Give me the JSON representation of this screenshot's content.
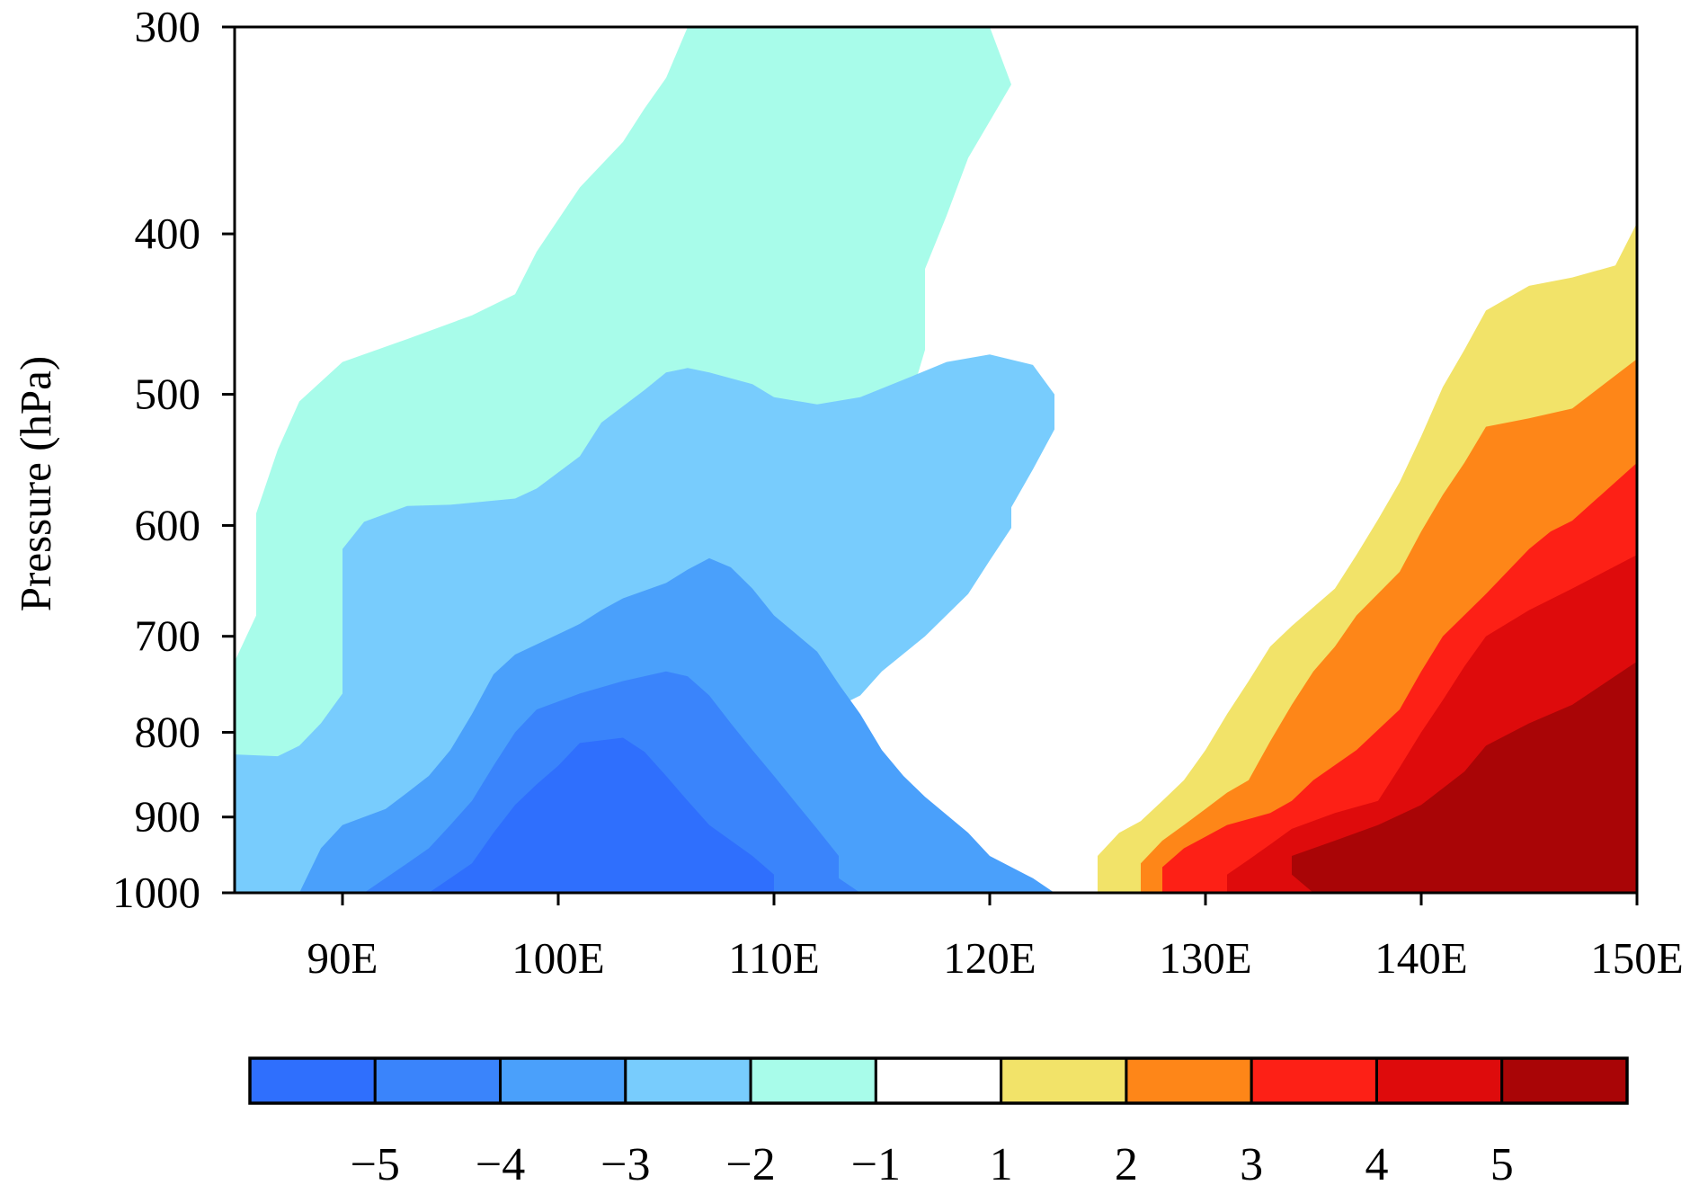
{
  "chart_data": {
    "type": "contour",
    "ylabel": "Pressure (hPa)",
    "xlabel": "",
    "xlim": [
      85,
      150
    ],
    "ylim": [
      1000,
      300
    ],
    "y_scale": "log-pressure",
    "x_ticks": [
      {
        "value": 90,
        "label": "90E"
      },
      {
        "value": 100,
        "label": "100E"
      },
      {
        "value": 110,
        "label": "110E"
      },
      {
        "value": 120,
        "label": "120E"
      },
      {
        "value": 130,
        "label": "130E"
      },
      {
        "value": 140,
        "label": "140E"
      },
      {
        "value": 150,
        "label": "150E"
      }
    ],
    "y_ticks": [
      {
        "value": 300,
        "label": "300"
      },
      {
        "value": 400,
        "label": "400"
      },
      {
        "value": 500,
        "label": "500"
      },
      {
        "value": 600,
        "label": "600"
      },
      {
        "value": 700,
        "label": "700"
      },
      {
        "value": 800,
        "label": "800"
      },
      {
        "value": 900,
        "label": "900"
      },
      {
        "value": 1000,
        "label": "1000"
      }
    ],
    "colorbar": {
      "orientation": "horizontal",
      "position": "bottom",
      "colors": [
        "#2f6ffd",
        "#3a84fb",
        "#4aa0fb",
        "#78ccfd",
        "#a8fcea",
        "#ffffff",
        "#f2e369",
        "#fe8618",
        "#fd2016",
        "#de0b0c",
        "#a90506"
      ],
      "labels": [
        "−5",
        "−4",
        "−3",
        "−2",
        "−1",
        "1",
        "2",
        "3",
        "4",
        "5"
      ]
    },
    "regions": [
      {
        "level": "-1",
        "color": "#a8fcea",
        "points": [
          [
            85,
            725
          ],
          [
            86,
            680
          ],
          [
            86,
            590
          ],
          [
            87,
            540
          ],
          [
            88,
            505
          ],
          [
            90,
            478
          ],
          [
            93,
            463
          ],
          [
            96,
            448
          ],
          [
            98,
            435
          ],
          [
            99,
            410
          ],
          [
            101,
            375
          ],
          [
            103,
            352
          ],
          [
            104,
            336
          ],
          [
            105,
            322
          ],
          [
            106,
            300
          ],
          [
            111,
            300
          ],
          [
            116,
            300
          ],
          [
            120,
            300
          ],
          [
            121,
            325
          ],
          [
            119,
            360
          ],
          [
            118,
            390
          ],
          [
            117,
            420
          ],
          [
            117,
            470
          ],
          [
            116,
            520
          ],
          [
            115,
            550
          ],
          [
            114,
            580
          ],
          [
            114,
            620
          ],
          [
            114,
            690
          ],
          [
            113,
            720
          ],
          [
            111,
            745
          ],
          [
            109,
            772
          ],
          [
            106,
            790
          ],
          [
            104,
            825
          ],
          [
            105,
            870
          ],
          [
            107,
            885
          ],
          [
            109,
            895
          ],
          [
            110,
            905
          ],
          [
            106,
            935
          ],
          [
            104,
            960
          ],
          [
            103,
            1000
          ],
          [
            85,
            1000
          ]
        ]
      },
      {
        "level": "-2",
        "color": "#78ccfd",
        "points": [
          [
            85,
            825
          ],
          [
            87,
            827
          ],
          [
            88,
            815
          ],
          [
            89,
            790
          ],
          [
            90,
            758
          ],
          [
            90,
            700
          ],
          [
            90,
            620
          ],
          [
            91,
            597
          ],
          [
            93,
            584
          ],
          [
            95,
            583
          ],
          [
            98,
            578
          ],
          [
            99,
            570
          ],
          [
            101,
            545
          ],
          [
            102,
            520
          ],
          [
            104,
            497
          ],
          [
            105,
            485
          ],
          [
            106,
            482
          ],
          [
            107,
            485
          ],
          [
            109,
            493
          ],
          [
            110,
            502
          ],
          [
            112,
            507
          ],
          [
            114,
            502
          ],
          [
            116,
            490
          ],
          [
            118,
            478
          ],
          [
            120,
            473
          ],
          [
            122,
            480
          ],
          [
            123,
            500
          ],
          [
            123,
            525
          ],
          [
            122,
            555
          ],
          [
            121,
            585
          ],
          [
            121,
            602
          ],
          [
            120,
            630
          ],
          [
            119,
            660
          ],
          [
            117,
            700
          ],
          [
            115,
            735
          ],
          [
            114,
            760
          ],
          [
            111,
            795
          ],
          [
            108,
            815
          ],
          [
            106,
            845
          ],
          [
            106,
            875
          ],
          [
            108,
            890
          ],
          [
            110,
            900
          ],
          [
            112,
            905
          ],
          [
            114,
            905
          ],
          [
            114,
            925
          ],
          [
            113,
            955
          ],
          [
            113,
            980
          ],
          [
            112,
            1000
          ],
          [
            85,
            1000
          ]
        ]
      },
      {
        "level": "-3",
        "color": "#4aa0fb",
        "points": [
          [
            88,
            1000
          ],
          [
            89,
            940
          ],
          [
            90,
            910
          ],
          [
            92,
            890
          ],
          [
            93,
            870
          ],
          [
            94,
            850
          ],
          [
            95,
            820
          ],
          [
            96,
            780
          ],
          [
            97,
            738
          ],
          [
            98,
            718
          ],
          [
            100,
            698
          ],
          [
            101,
            688
          ],
          [
            102,
            675
          ],
          [
            103,
            664
          ],
          [
            105,
            650
          ],
          [
            106,
            638
          ],
          [
            107,
            628
          ],
          [
            108,
            636
          ],
          [
            109,
            655
          ],
          [
            110,
            680
          ],
          [
            112,
            715
          ],
          [
            113,
            748
          ],
          [
            114,
            780
          ],
          [
            115,
            820
          ],
          [
            116,
            850
          ],
          [
            117,
            875
          ],
          [
            119,
            920
          ],
          [
            120,
            950
          ],
          [
            122,
            980
          ],
          [
            123,
            1000
          ]
        ]
      },
      {
        "level": "-4",
        "color": "#3a84fb",
        "points": [
          [
            91,
            1000
          ],
          [
            93,
            960
          ],
          [
            94,
            940
          ],
          [
            95,
            910
          ],
          [
            96,
            880
          ],
          [
            97,
            838
          ],
          [
            98,
            800
          ],
          [
            99,
            775
          ],
          [
            101,
            758
          ],
          [
            103,
            745
          ],
          [
            105,
            735
          ],
          [
            106,
            740
          ],
          [
            107,
            760
          ],
          [
            108,
            790
          ],
          [
            109,
            820
          ],
          [
            110,
            850
          ],
          [
            111,
            882
          ],
          [
            112,
            915
          ],
          [
            113,
            950
          ],
          [
            113,
            980
          ],
          [
            114,
            1000
          ]
        ]
      },
      {
        "level": "-5",
        "color": "#2f6ffd",
        "points": [
          [
            94,
            1000
          ],
          [
            96,
            960
          ],
          [
            97,
            920
          ],
          [
            98,
            885
          ],
          [
            99,
            860
          ],
          [
            100,
            838
          ],
          [
            101,
            812
          ],
          [
            103,
            806
          ],
          [
            104,
            822
          ],
          [
            105,
            850
          ],
          [
            106,
            880
          ],
          [
            107,
            910
          ],
          [
            109,
            950
          ],
          [
            110,
            975
          ],
          [
            110,
            1000
          ]
        ]
      },
      {
        "level": "1",
        "color": "#f2e369",
        "points": [
          [
            125,
            1000
          ],
          [
            125,
            950
          ],
          [
            126,
            920
          ],
          [
            127,
            905
          ],
          [
            128,
            880
          ],
          [
            129,
            855
          ],
          [
            130,
            820
          ],
          [
            131,
            780
          ],
          [
            132,
            745
          ],
          [
            133,
            710
          ],
          [
            134,
            690
          ],
          [
            136,
            655
          ],
          [
            137,
            625
          ],
          [
            138,
            595
          ],
          [
            139,
            565
          ],
          [
            140,
            530
          ],
          [
            141,
            495
          ],
          [
            142,
            470
          ],
          [
            143,
            445
          ],
          [
            145,
            430
          ],
          [
            147,
            425
          ],
          [
            149,
            418
          ],
          [
            150,
            394
          ],
          [
            150,
            1000
          ]
        ]
      },
      {
        "level": "2",
        "color": "#fe8618",
        "points": [
          [
            127,
            1000
          ],
          [
            127,
            960
          ],
          [
            128,
            930
          ],
          [
            129,
            910
          ],
          [
            130,
            890
          ],
          [
            131,
            870
          ],
          [
            132,
            855
          ],
          [
            133,
            810
          ],
          [
            134,
            770
          ],
          [
            135,
            735
          ],
          [
            136,
            710
          ],
          [
            137,
            680
          ],
          [
            139,
            640
          ],
          [
            140,
            605
          ],
          [
            141,
            575
          ],
          [
            142,
            550
          ],
          [
            143,
            523
          ],
          [
            145,
            517
          ],
          [
            147,
            510
          ],
          [
            150,
            476
          ],
          [
            150,
            1000
          ]
        ]
      },
      {
        "level": "3",
        "color": "#fd2016",
        "points": [
          [
            128,
            1000
          ],
          [
            128,
            965
          ],
          [
            129,
            940
          ],
          [
            130,
            925
          ],
          [
            131,
            910
          ],
          [
            133,
            895
          ],
          [
            134,
            880
          ],
          [
            135,
            855
          ],
          [
            137,
            820
          ],
          [
            139,
            775
          ],
          [
            140,
            735
          ],
          [
            141,
            700
          ],
          [
            143,
            660
          ],
          [
            145,
            620
          ],
          [
            146,
            605
          ],
          [
            147,
            596
          ],
          [
            150,
            550
          ],
          [
            150,
            1000
          ]
        ]
      },
      {
        "level": "4",
        "color": "#de0b0c",
        "points": [
          [
            131,
            1000
          ],
          [
            131,
            975
          ],
          [
            132,
            955
          ],
          [
            133,
            935
          ],
          [
            134,
            915
          ],
          [
            136,
            895
          ],
          [
            138,
            880
          ],
          [
            139,
            840
          ],
          [
            140,
            800
          ],
          [
            141,
            765
          ],
          [
            142,
            730
          ],
          [
            143,
            700
          ],
          [
            145,
            675
          ],
          [
            147,
            655
          ],
          [
            150,
            625
          ],
          [
            150,
            1000
          ]
        ]
      },
      {
        "level": "5",
        "color": "#a90506",
        "points": [
          [
            135,
            1000
          ],
          [
            134,
            975
          ],
          [
            134,
            950
          ],
          [
            136,
            930
          ],
          [
            138,
            910
          ],
          [
            140,
            885
          ],
          [
            142,
            845
          ],
          [
            143,
            815
          ],
          [
            145,
            790
          ],
          [
            147,
            770
          ],
          [
            150,
            725
          ],
          [
            150,
            1000
          ]
        ]
      }
    ]
  }
}
